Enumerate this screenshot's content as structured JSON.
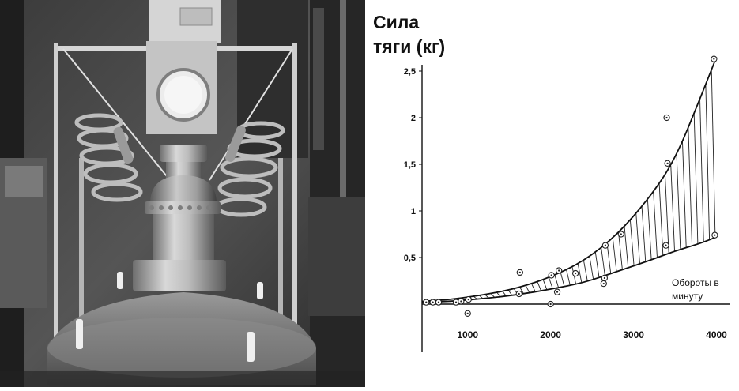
{
  "photo": {
    "description_icon": "rocket-engine-test-stand-photo-icon"
  },
  "chart_data": {
    "type": "scatter",
    "title_lines": [
      "Сила",
      "тяги (кг)"
    ],
    "xlabel_lines": [
      "Обороты в",
      "минуту"
    ],
    "ylabel": "",
    "xlim": [
      450,
      4100
    ],
    "ylim": [
      -0.15,
      2.72
    ],
    "xticks": [
      {
        "value": 1000,
        "label": "1000"
      },
      {
        "value": 2000,
        "label": "2000"
      },
      {
        "value": 3000,
        "label": "3000"
      },
      {
        "value": 4000,
        "label": "4000"
      }
    ],
    "yticks": [
      {
        "value": 0.5,
        "label": "0,5"
      },
      {
        "value": 1,
        "label": "1"
      },
      {
        "value": 1.5,
        "label": "1,5"
      },
      {
        "value": 2,
        "label": "2"
      },
      {
        "value": 2.5,
        "label": "2,5"
      }
    ],
    "upper_curve": [
      [
        450,
        0.03
      ],
      [
        800,
        0.05
      ],
      [
        1200,
        0.1
      ],
      [
        1600,
        0.17
      ],
      [
        2000,
        0.29
      ],
      [
        2400,
        0.46
      ],
      [
        2800,
        0.74
      ],
      [
        3200,
        1.15
      ],
      [
        3500,
        1.55
      ],
      [
        3800,
        2.2
      ],
      [
        4000,
        2.65
      ]
    ],
    "lower_curve": [
      [
        450,
        0.02
      ],
      [
        800,
        0.03
      ],
      [
        1200,
        0.06
      ],
      [
        1600,
        0.1
      ],
      [
        2000,
        0.16
      ],
      [
        2400,
        0.23
      ],
      [
        2800,
        0.35
      ],
      [
        3200,
        0.47
      ],
      [
        3500,
        0.57
      ],
      [
        3800,
        0.65
      ],
      [
        4000,
        0.72
      ]
    ],
    "points": [
      [
        500,
        0.02
      ],
      [
        580,
        0.02
      ],
      [
        650,
        0.02
      ],
      [
        860,
        0.02
      ],
      [
        920,
        0.03
      ],
      [
        1000,
        -0.1
      ],
      [
        1010,
        0.05
      ],
      [
        1620,
        0.11
      ],
      [
        1630,
        0.34
      ],
      [
        2000,
        0.0
      ],
      [
        2010,
        0.31
      ],
      [
        2080,
        0.13
      ],
      [
        2100,
        0.36
      ],
      [
        2300,
        0.33
      ],
      [
        2640,
        0.22
      ],
      [
        2650,
        0.28
      ],
      [
        2660,
        0.63
      ],
      [
        2850,
        0.75
      ],
      [
        3390,
        0.63
      ],
      [
        3400,
        2.0
      ],
      [
        3410,
        1.51
      ],
      [
        3970,
        2.63
      ],
      [
        3980,
        0.74
      ]
    ]
  }
}
